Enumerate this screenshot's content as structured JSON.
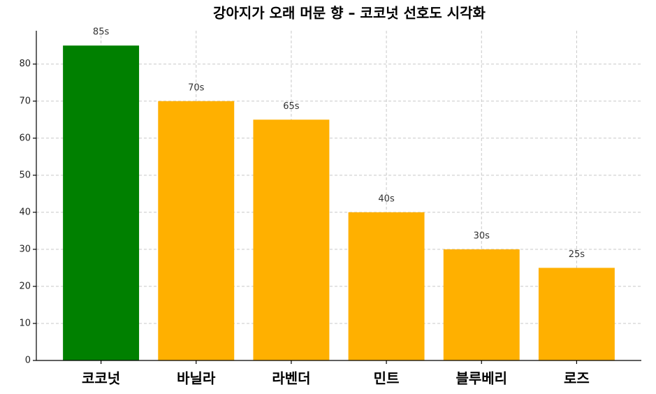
{
  "chart_data": {
    "type": "bar",
    "title": "강아지가 오래 머문 향 – 코코넛 선호도 시각화",
    "categories": [
      "코코넛",
      "바닐라",
      "라벤더",
      "민트",
      "블루베리",
      "로즈"
    ],
    "values": [
      85,
      70,
      65,
      40,
      30,
      25
    ],
    "value_labels": [
      "85s",
      "70s",
      "65s",
      "40s",
      "30s",
      "25s"
    ],
    "colors": [
      "#008000",
      "#ffb000",
      "#ffb000",
      "#ffb000",
      "#ffb000",
      "#ffb000"
    ],
    "ylim": [
      0,
      89
    ],
    "yticks": [
      0,
      10,
      20,
      30,
      40,
      50,
      60,
      70,
      80
    ],
    "grid": true
  }
}
